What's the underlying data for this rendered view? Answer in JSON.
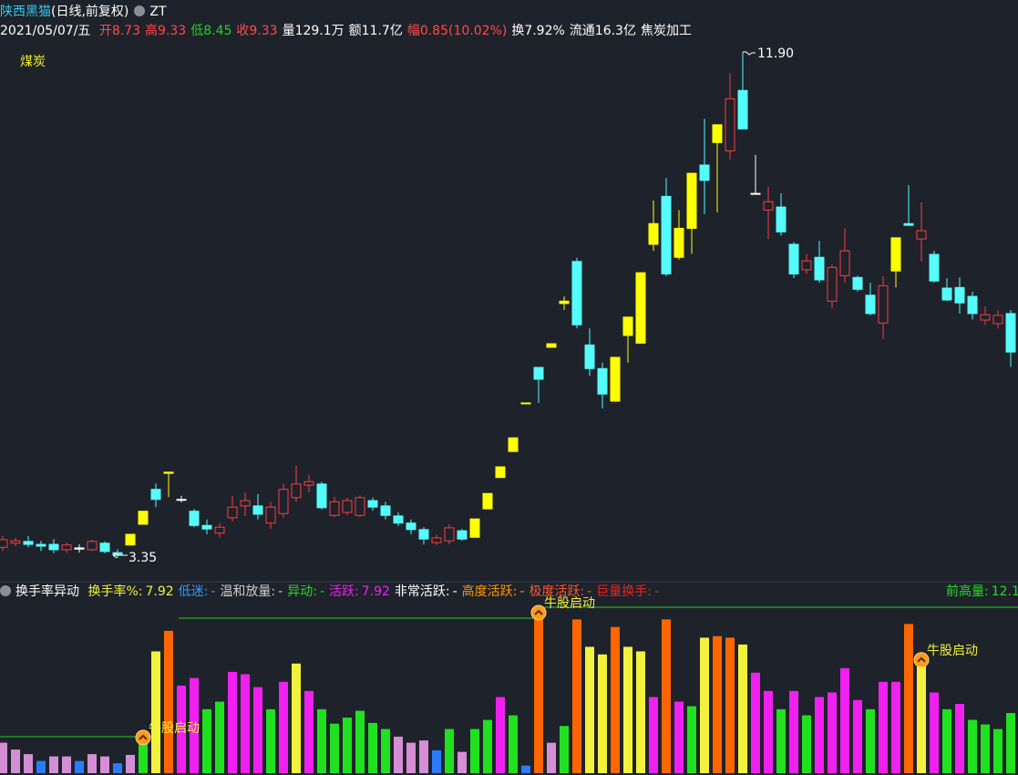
{
  "header": {
    "name": "陕西黑猫",
    "period": "(日线,前复权)",
    "tag": "ZT",
    "date": "2021/05/07/五",
    "quote": [
      {
        "label": "开",
        "value": "8.73",
        "color": "#ff4a4a"
      },
      {
        "label": "高",
        "value": "9.33",
        "color": "#ff4a4a"
      },
      {
        "label": "低",
        "value": "8.45",
        "color": "#21d421"
      },
      {
        "label": "收",
        "value": "9.33",
        "color": "#ff4a4a"
      },
      {
        "label": "量",
        "value": "129.1万",
        "color": "#ffffff"
      },
      {
        "label": "额",
        "value": "11.7亿",
        "color": "#ffffff"
      },
      {
        "label": "幅",
        "value": "0.85(10.02%)",
        "color": "#ff4a4a"
      },
      {
        "label": "换",
        "value": "7.92%",
        "color": "#ffffff"
      },
      {
        "label": "流通",
        "value": "16.3亿",
        "color": "#ffffff"
      }
    ],
    "industry": "焦炭加工"
  },
  "chart_data": [
    {
      "type": "candlestick",
      "label": "煤炭",
      "high_label": "11.90",
      "low_label": "3.35",
      "hollow_color": "#ff3c3c",
      "open": [
        3.53,
        3.6,
        3.63,
        3.58,
        3.58,
        3.49,
        3.5,
        3.49,
        3.6,
        3.44,
        3.57,
        3.92,
        4.51,
        4.78,
        4.34,
        4.14,
        3.9,
        3.77,
        4.03,
        4.23,
        4.23,
        3.94,
        4.1,
        4.37,
        4.58,
        4.6,
        4.07,
        4.12,
        4.07,
        4.32,
        4.23,
        4.06,
        3.94,
        3.83,
        3.61,
        3.64,
        3.81,
        3.7,
        4.18,
        4.71,
        5.15,
        5.97,
        6.57,
        6.91,
        7.65,
        8.36,
        6.95,
        6.55,
        6.0,
        7.11,
        6.98,
        8.65,
        9.46,
        8.43,
        8.92,
        9.99,
        10.37,
        10.23,
        11.25,
        9.51,
        9.23,
        9.28,
        8.65,
        8.22,
        8.43,
        7.69,
        8.12,
        8.09,
        7.79,
        7.32,
        8.2,
        9.0,
        8.74,
        8.48,
        7.91,
        7.92,
        7.77,
        7.37,
        7.31,
        7.48
      ],
      "high": [
        3.72,
        3.69,
        3.72,
        3.64,
        3.67,
        3.61,
        3.58,
        3.66,
        3.63,
        3.5,
        3.75,
        4.14,
        4.61,
        4.8,
        4.4,
        4.18,
        4.0,
        3.94,
        4.4,
        4.46,
        4.43,
        4.3,
        4.61,
        4.91,
        4.75,
        4.64,
        4.38,
        4.37,
        4.41,
        4.37,
        4.3,
        4.12,
        4.0,
        3.87,
        3.74,
        3.92,
        3.84,
        4.01,
        4.44,
        4.89,
        5.38,
        5.97,
        6.57,
        6.97,
        7.77,
        8.42,
        7.23,
        6.65,
        6.74,
        7.42,
        8.17,
        9.39,
        9.77,
        9.23,
        9.85,
        10.77,
        10.67,
        11.54,
        11.9,
        10.16,
        9.62,
        9.51,
        8.69,
        8.49,
        8.71,
        8.31,
        8.92,
        8.12,
        8.0,
        8.11,
        8.76,
        9.65,
        9.36,
        8.54,
        8.08,
        8.09,
        7.85,
        7.6,
        7.54,
        7.54
      ],
      "low": [
        3.47,
        3.55,
        3.53,
        3.47,
        3.43,
        3.44,
        3.44,
        3.47,
        3.43,
        3.35,
        3.57,
        3.92,
        4.21,
        4.38,
        4.29,
        3.87,
        3.75,
        3.69,
        3.97,
        4.06,
        4.0,
        3.84,
        4.03,
        4.3,
        4.46,
        4.17,
        4.04,
        4.07,
        4.04,
        4.15,
        4.0,
        3.89,
        3.75,
        3.58,
        3.57,
        3.58,
        3.64,
        3.7,
        4.18,
        4.71,
        5.15,
        5.97,
        5.97,
        6.91,
        7.54,
        7.23,
        6.43,
        5.88,
        6.0,
        6.65,
        6.98,
        8.54,
        8.11,
        8.39,
        8.49,
        9.16,
        9.19,
        10.08,
        10.6,
        9.51,
        8.74,
        8.8,
        8.08,
        8.15,
        8.0,
        7.57,
        8.0,
        7.85,
        7.45,
        7.05,
        7.92,
        8.96,
        8.36,
        8.0,
        7.69,
        7.48,
        7.38,
        7.29,
        7.23,
        6.58
      ],
      "close": [
        3.66,
        3.64,
        3.58,
        3.55,
        3.49,
        3.57,
        3.52,
        3.63,
        3.46,
        3.41,
        3.75,
        4.14,
        4.34,
        4.8,
        4.34,
        3.9,
        3.84,
        3.87,
        4.21,
        4.32,
        4.09,
        4.21,
        4.51,
        4.6,
        4.64,
        4.2,
        4.3,
        4.32,
        4.37,
        4.21,
        4.07,
        3.94,
        3.83,
        3.67,
        3.69,
        3.86,
        3.67,
        4.01,
        4.44,
        4.89,
        5.38,
        5.97,
        6.37,
        6.97,
        7.69,
        7.29,
        6.55,
        6.12,
        6.74,
        7.42,
        8.17,
        9.0,
        8.15,
        8.92,
        9.85,
        9.73,
        10.67,
        11.11,
        10.6,
        9.51,
        9.37,
        8.86,
        8.15,
        8.37,
        8.05,
        8.26,
        8.54,
        7.89,
        7.48,
        7.95,
        8.76,
        8.97,
        8.88,
        8.03,
        7.71,
        7.66,
        7.48,
        7.46,
        7.45,
        6.83
      ],
      "colors": [
        "#ff3c3c",
        "#ff3c3c",
        "#54fcfc",
        "#54fcfc",
        "#54fcfc",
        "#ff3c3c",
        "#ffffff",
        "#ff3c3c",
        "#54fcfc",
        "#54fcfc",
        "#ffff00",
        "#ffff00",
        "#54fcfc",
        "#ffff00",
        "#ffffff",
        "#54fcfc",
        "#54fcfc",
        "#ff3c3c",
        "#ff3c3c",
        "#ff3c3c",
        "#54fcfc",
        "#ff3c3c",
        "#ff3c3c",
        "#ff3c3c",
        "#ff3c3c",
        "#54fcfc",
        "#ff3c3c",
        "#ff3c3c",
        "#ff3c3c",
        "#54fcfc",
        "#54fcfc",
        "#54fcfc",
        "#54fcfc",
        "#54fcfc",
        "#ff3c3c",
        "#ff3c3c",
        "#54fcfc",
        "#ffff00",
        "#ffff00",
        "#ffff00",
        "#ffff00",
        "#ffff00",
        "#54fcfc",
        "#ffff00",
        "#ffff00",
        "#54fcfc",
        "#54fcfc",
        "#54fcfc",
        "#ffff00",
        "#ffff00",
        "#ffff00",
        "#ffff00",
        "#54fcfc",
        "#ffff00",
        "#ffff00",
        "#54fcfc",
        "#ffff00",
        "#ff3c3c",
        "#54fcfc",
        "#ffffff",
        "#ff3c3c",
        "#54fcfc",
        "#54fcfc",
        "#ff3c3c",
        "#54fcfc",
        "#ff3c3c",
        "#ff3c3c",
        "#54fcfc",
        "#54fcfc",
        "#ff3c3c",
        "#ffff00",
        "#54fcfc",
        "#ff3c3c",
        "#54fcfc",
        "#54fcfc",
        "#54fcfc",
        "#54fcfc",
        "#ff3c3c",
        "#ff3c3c",
        "#54fcfc"
      ]
    },
    {
      "type": "bar",
      "title": "换手率异动",
      "items": [
        {
          "label": "换手率%:",
          "value": "7.92",
          "color": "#f0f040"
        },
        {
          "label": "低迷:",
          "value": "-",
          "color": "#3399ff"
        },
        {
          "label": "温和放量:",
          "value": "-",
          "color": "#cccccc"
        },
        {
          "label": "异动:",
          "value": "-",
          "color": "#22dd22"
        },
        {
          "label": "活跃:",
          "value": "7.92",
          "color": "#ee22ee"
        },
        {
          "label": "非常活跃:",
          "value": "-",
          "color": "#ffffff"
        },
        {
          "label": "高度活跃:",
          "value": "-",
          "color": "#ff9900"
        },
        {
          "label": "极度活跃:",
          "value": "-",
          "color": "#ff5533"
        },
        {
          "label": "巨量换手:",
          "value": "-",
          "color": "#ee2222"
        }
      ],
      "right_item": {
        "label": "前高量:",
        "value": "12.1",
        "color": "#22dd22"
      },
      "values": [
        4.0,
        3.1,
        2.5,
        1.6,
        2.2,
        2.2,
        1.6,
        2.5,
        2.2,
        1.3,
        2.4,
        5.4,
        16.0,
        18.7,
        11.5,
        12.5,
        8.4,
        9.4,
        13.3,
        13.0,
        11.3,
        8.4,
        12.0,
        14.4,
        10.8,
        8.4,
        6.5,
        7.3,
        8.2,
        6.6,
        5.8,
        4.8,
        4.0,
        4.3,
        3.0,
        5.8,
        2.8,
        5.8,
        7.0,
        10.0,
        7.6,
        1.0,
        21.8,
        4.0,
        6.2,
        20.2,
        16.6,
        15.6,
        19.2,
        16.6,
        16.0,
        10.0,
        20.2,
        9.4,
        8.8,
        17.8,
        18.0,
        17.8,
        16.9,
        13.2,
        10.8,
        8.4,
        10.8,
        7.6,
        10.0,
        10.6,
        13.8,
        9.6,
        8.4,
        12.0,
        12.0,
        19.6,
        15.6,
        10.6,
        8.4,
        9.1,
        7.0,
        6.4,
        5.8,
        7.9
      ],
      "colors": [
        "#d58ed5",
        "#d58ed5",
        "#d58ed5",
        "#2a7cff",
        "#d58ed5",
        "#d58ed5",
        "#2a7cff",
        "#d58ed5",
        "#d58ed5",
        "#2a7cff",
        "#d58ed5",
        "#20e020",
        "#f2f23c",
        "#ff6600",
        "#f020f0",
        "#f020f0",
        "#20e020",
        "#20e020",
        "#f020f0",
        "#f020f0",
        "#f020f0",
        "#20e020",
        "#f020f0",
        "#f2f23c",
        "#f020f0",
        "#20e020",
        "#20e020",
        "#20e020",
        "#20e020",
        "#20e020",
        "#20e020",
        "#d58ed5",
        "#d58ed5",
        "#d58ed5",
        "#2a7cff",
        "#20e020",
        "#d58ed5",
        "#20e020",
        "#20e020",
        "#f020f0",
        "#20e020",
        "#2a7cff",
        "#ff6600",
        "#d58ed5",
        "#20e020",
        "#ff6600",
        "#f2f23c",
        "#f2f23c",
        "#ff6600",
        "#f2f23c",
        "#f2f23c",
        "#f020f0",
        "#ff6600",
        "#f020f0",
        "#20e020",
        "#f2f23c",
        "#ff6600",
        "#ff6600",
        "#f2f23c",
        "#f020f0",
        "#f020f0",
        "#20e020",
        "#f020f0",
        "#20e020",
        "#f020f0",
        "#f020f0",
        "#f020f0",
        "#f020f0",
        "#20e020",
        "#f020f0",
        "#f020f0",
        "#ff6600",
        "#f2f23c",
        "#f020f0",
        "#20e020",
        "#f020f0",
        "#20e020",
        "#20e020",
        "#20e020",
        "#20e020"
      ],
      "signals": [
        null,
        null,
        null,
        null,
        null,
        null,
        null,
        null,
        null,
        null,
        null,
        "牛股启动",
        null,
        null,
        null,
        null,
        null,
        null,
        null,
        null,
        null,
        null,
        null,
        null,
        null,
        null,
        null,
        null,
        null,
        null,
        null,
        null,
        null,
        null,
        null,
        null,
        null,
        null,
        null,
        null,
        null,
        null,
        "牛股启动",
        null,
        null,
        null,
        null,
        null,
        null,
        null,
        null,
        null,
        null,
        null,
        null,
        null,
        null,
        null,
        null,
        null,
        null,
        null,
        null,
        null,
        null,
        null,
        null,
        null,
        null,
        null,
        null,
        null,
        "牛股启动",
        null,
        null,
        null,
        null,
        null,
        null,
        null
      ]
    }
  ]
}
